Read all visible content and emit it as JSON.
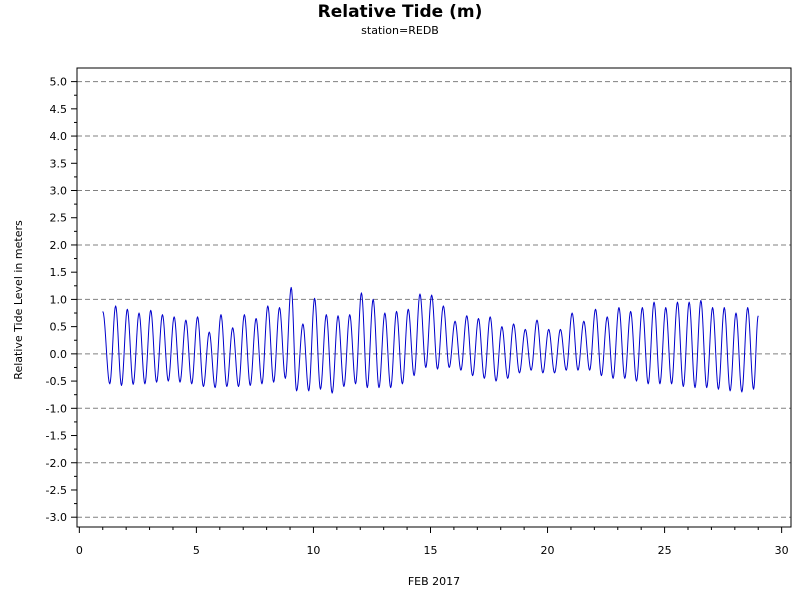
{
  "chart_data": {
    "type": "line",
    "title": "Relative Tide (m)",
    "subtitle": "station=REDB",
    "xlabel": "FEB 2017",
    "ylabel": "Relative Tide Level in meters",
    "xlim": [
      -0.1,
      30.4
    ],
    "ylim": [
      -3.18,
      5.25
    ],
    "x_ticks": [
      0,
      5,
      10,
      15,
      20,
      25,
      30
    ],
    "x_tick_labels": [
      "0",
      "5",
      "10",
      "15",
      "20",
      "25",
      "30"
    ],
    "y_ticks": [
      -3.0,
      -2.5,
      -2.0,
      -1.5,
      -1.0,
      -0.5,
      0.0,
      0.5,
      1.0,
      1.5,
      2.0,
      2.5,
      3.0,
      3.5,
      4.0,
      4.5,
      5.0
    ],
    "y_tick_labels": [
      "-3.0",
      "-2.5",
      "-2.0",
      "-1.5",
      "-1.0",
      "-0.5",
      "0.0",
      "0.5",
      "1.0",
      "1.5",
      "2.0",
      "2.5",
      "3.0",
      "3.5",
      "4.0",
      "4.5",
      "5.0"
    ],
    "y_minor_step": 0.25,
    "grid_y": [
      -3.0,
      -2.0,
      -1.0,
      0.0,
      1.0,
      2.0,
      3.0,
      4.0,
      5.0
    ],
    "grid_style": "dashed",
    "series_color": "#0000cc",
    "series": [
      {
        "x": [
          1.0,
          1.3,
          1.55,
          1.8,
          2.05,
          2.3,
          2.55,
          2.8,
          3.05,
          3.3,
          3.55,
          3.8,
          4.05,
          4.3,
          4.55,
          4.8,
          5.05,
          5.3,
          5.55,
          5.8,
          6.05,
          6.3,
          6.55,
          6.8,
          7.05,
          7.3,
          7.55,
          7.8,
          8.05,
          8.3,
          8.55,
          8.8,
          9.05,
          9.28,
          9.55,
          9.8,
          10.05,
          10.3,
          10.55,
          10.8,
          11.05,
          11.3,
          11.55,
          11.8,
          12.05,
          12.3,
          12.55,
          12.8,
          13.05,
          13.3,
          13.55,
          13.8,
          14.05,
          14.3,
          14.55,
          14.8,
          15.05,
          15.3,
          15.55,
          15.8,
          16.05,
          16.3,
          16.55,
          16.8,
          17.05,
          17.3,
          17.55,
          17.8,
          18.05,
          18.3,
          18.55,
          18.8,
          19.05,
          19.3,
          19.55,
          19.8,
          20.05,
          20.3,
          20.55,
          20.8,
          21.05,
          21.3,
          21.55,
          21.8,
          22.05,
          22.3,
          22.55,
          22.8,
          23.05,
          23.3,
          23.55,
          23.8,
          24.05,
          24.3,
          24.55,
          24.8,
          25.05,
          25.3,
          25.55,
          25.8,
          26.05,
          26.3,
          26.55,
          26.8,
          27.05,
          27.3,
          27.55,
          27.8,
          28.05,
          28.3,
          28.55,
          28.8,
          29.0
        ],
        "y": [
          0.78,
          -0.55,
          0.88,
          -0.58,
          0.82,
          -0.56,
          0.75,
          -0.55,
          0.8,
          -0.52,
          0.72,
          -0.5,
          0.68,
          -0.52,
          0.62,
          -0.55,
          0.68,
          -0.6,
          0.4,
          -0.62,
          0.72,
          -0.6,
          0.48,
          -0.6,
          0.72,
          -0.58,
          0.65,
          -0.55,
          0.88,
          -0.52,
          0.85,
          -0.45,
          1.22,
          -0.68,
          0.55,
          -0.68,
          1.02,
          -0.65,
          0.72,
          -0.72,
          0.7,
          -0.6,
          0.72,
          -0.55,
          1.12,
          -0.62,
          1.0,
          -0.62,
          0.75,
          -0.62,
          0.78,
          -0.55,
          0.82,
          -0.4,
          1.1,
          -0.25,
          1.08,
          -0.28,
          0.88,
          -0.25,
          0.6,
          -0.3,
          0.7,
          -0.4,
          0.65,
          -0.45,
          0.68,
          -0.5,
          0.5,
          -0.45,
          0.55,
          -0.35,
          0.45,
          -0.3,
          0.62,
          -0.35,
          0.45,
          -0.35,
          0.45,
          -0.3,
          0.75,
          -0.3,
          0.6,
          -0.3,
          0.82,
          -0.4,
          0.68,
          -0.45,
          0.85,
          -0.45,
          0.78,
          -0.5,
          0.85,
          -0.55,
          0.95,
          -0.55,
          0.85,
          -0.55,
          0.95,
          -0.6,
          0.95,
          -0.62,
          0.98,
          -0.62,
          0.85,
          -0.65,
          0.85,
          -0.68,
          0.75,
          -0.7,
          0.85,
          -0.65,
          0.7
        ]
      }
    ]
  }
}
